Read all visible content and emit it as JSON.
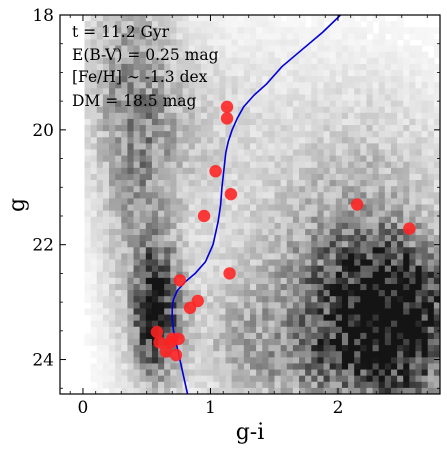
{
  "chart_data": {
    "type": "scatter",
    "xlabel": "g-i",
    "ylabel": "g",
    "xlim": [
      -0.18,
      2.8
    ],
    "ylim": [
      24.6,
      18.0
    ],
    "y_inverted": true,
    "xticks": [
      0,
      1,
      2
    ],
    "yticks": [
      18,
      20,
      22,
      24
    ],
    "xtick_labels": [
      "0",
      "1",
      "2"
    ],
    "ytick_labels": [
      "18",
      "20",
      "22",
      "24"
    ],
    "background": "grayscale 2D density (Hess) diagram",
    "annotations": [
      "t = 11.2 Gyr",
      "E(B-V) = 0.25 mag",
      "[Fe/H] ∼ -1.3 dex",
      "DM = 18.5 mag"
    ],
    "isochrone": {
      "color": "#0000dd",
      "x": [
        0.82,
        0.79,
        0.76,
        0.73,
        0.71,
        0.7,
        0.7,
        0.71,
        0.74,
        0.8,
        0.88,
        0.96,
        1.02,
        1.06,
        1.08,
        1.09,
        1.1,
        1.11,
        1.12,
        1.14,
        1.17,
        1.21,
        1.26,
        1.34,
        1.44,
        1.56,
        1.72,
        1.88,
        2.02
      ],
      "y": [
        24.6,
        24.3,
        24.0,
        23.7,
        23.5,
        23.3,
        23.1,
        22.95,
        22.8,
        22.65,
        22.5,
        22.3,
        22.0,
        21.6,
        21.3,
        21.0,
        20.8,
        20.6,
        20.4,
        20.2,
        20.0,
        19.8,
        19.6,
        19.4,
        19.2,
        18.9,
        18.6,
        18.3,
        18.0
      ]
    },
    "points": {
      "color": "#ff2222",
      "x": [
        1.13,
        1.13,
        1.04,
        1.16,
        0.95,
        2.15,
        2.56,
        1.15,
        0.76,
        0.9,
        0.84,
        0.58,
        0.6,
        0.65,
        0.7,
        0.75,
        0.69,
        0.73
      ],
      "y": [
        19.6,
        19.8,
        20.72,
        21.12,
        21.5,
        21.3,
        21.72,
        22.5,
        22.62,
        22.98,
        23.1,
        23.52,
        23.7,
        23.86,
        23.64,
        23.64,
        23.7,
        23.92
      ]
    }
  }
}
